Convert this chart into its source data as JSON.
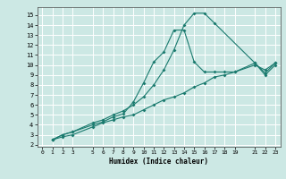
{
  "xlabel": "Humidex (Indice chaleur)",
  "bg_color": "#cce8e4",
  "grid_color": "#ffffff",
  "line_color": "#1a7a6e",
  "xlim": [
    -0.5,
    23.5
  ],
  "ylim": [
    1.8,
    15.8
  ],
  "xticks": [
    0,
    1,
    2,
    3,
    5,
    6,
    7,
    8,
    9,
    10,
    11,
    12,
    13,
    14,
    15,
    16,
    17,
    18,
    19,
    21,
    22,
    23
  ],
  "yticks": [
    2,
    3,
    4,
    5,
    6,
    7,
    8,
    9,
    10,
    11,
    12,
    13,
    14,
    15
  ],
  "line1_x": [
    1,
    2,
    3,
    5,
    6,
    7,
    8,
    9,
    10,
    11,
    12,
    13,
    14,
    15,
    16,
    17,
    21,
    22,
    23
  ],
  "line1_y": [
    2.5,
    3.0,
    3.3,
    4.2,
    4.5,
    5.0,
    5.4,
    6.0,
    6.8,
    8.0,
    9.5,
    11.5,
    14.0,
    15.2,
    15.2,
    14.2,
    10.2,
    9.2,
    10.2
  ],
  "line2_x": [
    1,
    2,
    3,
    5,
    6,
    7,
    8,
    9,
    10,
    11,
    12,
    13,
    14,
    15,
    16,
    17,
    18,
    19,
    21,
    22,
    23
  ],
  "line2_y": [
    2.5,
    3.0,
    3.3,
    4.0,
    4.3,
    4.8,
    5.1,
    6.3,
    8.2,
    10.3,
    11.3,
    13.5,
    13.5,
    10.3,
    9.3,
    9.3,
    9.3,
    9.3,
    10.2,
    9.0,
    10.0
  ],
  "line3_x": [
    1,
    2,
    3,
    5,
    6,
    7,
    8,
    9,
    10,
    11,
    12,
    13,
    14,
    15,
    16,
    17,
    18,
    19,
    21,
    22,
    23
  ],
  "line3_y": [
    2.5,
    2.8,
    3.0,
    3.8,
    4.2,
    4.5,
    4.8,
    5.0,
    5.5,
    6.0,
    6.5,
    6.8,
    7.2,
    7.8,
    8.2,
    8.8,
    9.0,
    9.3,
    10.0,
    9.5,
    10.2
  ]
}
